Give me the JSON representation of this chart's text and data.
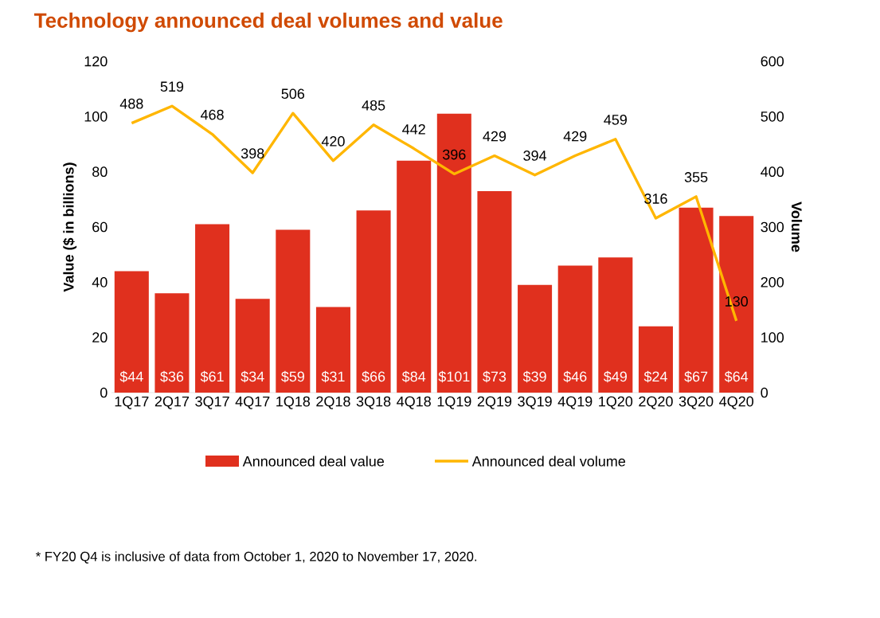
{
  "chart_data": {
    "type": "bar",
    "title": "Technology announced deal volumes and value",
    "ylabel": "Value ($ in billions)",
    "y2label": "Volume",
    "categories": [
      "1Q17",
      "2Q17",
      "3Q17",
      "4Q17",
      "1Q18",
      "2Q18",
      "3Q18",
      "4Q18",
      "1Q19",
      "2Q19",
      "3Q19",
      "4Q19",
      "1Q20",
      "2Q20",
      "3Q20",
      "4Q20"
    ],
    "series": [
      {
        "name": "Announced deal value",
        "color": "#e0301e",
        "values": [
          44,
          36,
          61,
          34,
          59,
          31,
          66,
          84,
          101,
          73,
          39,
          46,
          49,
          24,
          67,
          64
        ],
        "value_labels": [
          "$44",
          "$36",
          "$61",
          "$34",
          "$59",
          "$31",
          "$66",
          "$84",
          "$101",
          "$73",
          "$39",
          "$46",
          "$49",
          "$24",
          "$67",
          "$64"
        ]
      },
      {
        "name": "Announced deal volume",
        "type": "line",
        "axis": "y2",
        "color": "#ffb600",
        "values": [
          488,
          519,
          468,
          398,
          506,
          420,
          485,
          442,
          396,
          429,
          394,
          429,
          459,
          316,
          355,
          130
        ],
        "value_labels": [
          "488",
          "519",
          "468",
          "398",
          "506",
          "420",
          "485",
          "442",
          "396",
          "429",
          "394",
          "429",
          "459",
          "316",
          "355",
          "130"
        ]
      }
    ],
    "ylim": [
      0,
      120
    ],
    "yticks": [
      0,
      20,
      40,
      60,
      80,
      100,
      120
    ],
    "y2lim": [
      0,
      600
    ],
    "y2ticks": [
      0,
      100,
      200,
      300,
      400,
      500,
      600
    ],
    "legend": "bottom",
    "annotations": [
      "* FY20 Q4 is inclusive of data from October 1, 2020 to November 17, 2020."
    ]
  }
}
